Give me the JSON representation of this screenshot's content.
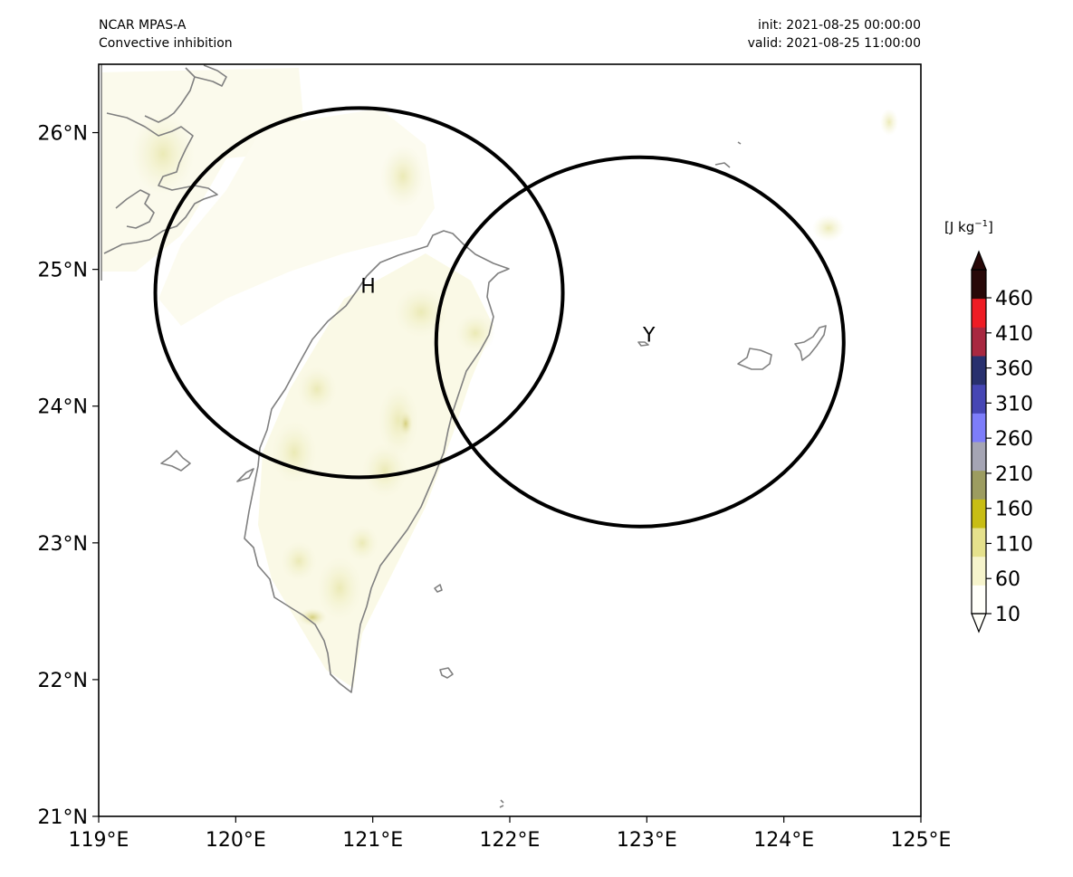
{
  "header": {
    "model": "NCAR MPAS-A",
    "field": "Convective inhibition",
    "init": "init: 2021-08-25 00:00:00",
    "valid": "valid: 2021-08-25 11:00:00"
  },
  "map": {
    "lon_range": [
      119,
      125
    ],
    "lat_range": [
      21,
      26.5
    ],
    "x_ticks": [
      "119°E",
      "120°E",
      "121°E",
      "122°E",
      "123°E",
      "124°E",
      "125°E"
    ],
    "y_ticks": [
      "21°N",
      "22°N",
      "23°N",
      "24°N",
      "25°N",
      "26°N"
    ],
    "coastline_color": "#808080",
    "range_rings": [
      {
        "label": "H",
        "center_lon": 120.9,
        "center_lat": 24.83,
        "ring_color": "#000000"
      },
      {
        "label": "Y",
        "center_lon": 122.95,
        "center_lat": 24.47,
        "ring_color": "#000000"
      }
    ]
  },
  "colorbar": {
    "unit_prefix": "[J kg",
    "unit_exp": "−1",
    "unit_suffix": "]",
    "ticks": [
      "10",
      "60",
      "110",
      "160",
      "210",
      "260",
      "310",
      "360",
      "410",
      "460"
    ],
    "min": 10,
    "max": 500,
    "extend": "both",
    "colors": [
      "#fffffa",
      "#f6f4cc",
      "#e5e18c",
      "#c8bd14",
      "#9c9c60",
      "#a5a5b4",
      "#7d7dfa",
      "#4646b4",
      "#28306e",
      "#a82840",
      "#ee1c24",
      "#280808"
    ]
  }
}
